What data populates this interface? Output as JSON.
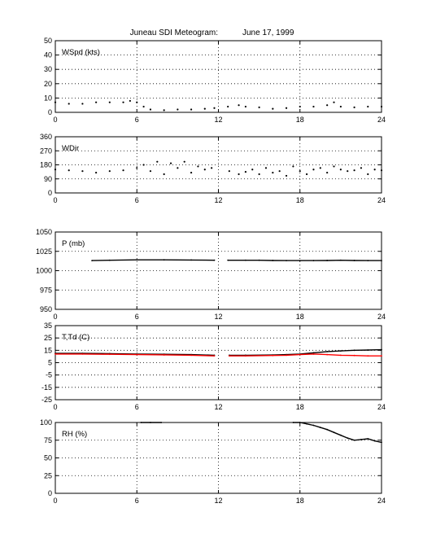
{
  "figure": {
    "title": "Juneau SDI Meteogram:",
    "date": "June 17, 1999"
  },
  "chart_data": [
    {
      "type": "line",
      "label": "WSpd (kts)",
      "xlim": [
        0,
        24
      ],
      "xticks": [
        0,
        6,
        12,
        18,
        24
      ],
      "ylim": [
        0,
        50
      ],
      "yticks": [
        0,
        10,
        20,
        30,
        40,
        50
      ],
      "grid": true,
      "series": [
        {
          "color": "#000000",
          "style": "dots",
          "x": [
            0,
            1,
            2,
            3,
            4,
            5,
            5.5,
            6,
            6.5,
            7,
            8,
            9,
            10,
            11,
            11.7,
            null,
            12.7,
            13.5,
            14,
            15,
            16,
            17,
            18,
            19,
            20,
            20.5,
            21,
            22,
            23,
            24
          ],
          "y": [
            7,
            6,
            6,
            7,
            7,
            7,
            8,
            7,
            4,
            2,
            1.5,
            2,
            2,
            2.5,
            3,
            null,
            4,
            5,
            4,
            3.5,
            2.5,
            3,
            4,
            4,
            5,
            7,
            4,
            3.5,
            4,
            4
          ]
        }
      ]
    },
    {
      "type": "scatter",
      "label": "WDir",
      "xlim": [
        0,
        24
      ],
      "xticks": [
        0,
        6,
        12,
        18,
        24
      ],
      "ylim": [
        0,
        360
      ],
      "yticks": [
        0,
        90,
        180,
        270,
        360
      ],
      "grid": true,
      "series": [
        {
          "color": "#000000",
          "style": "dots",
          "x": [
            0,
            1,
            2,
            3,
            4,
            5,
            6,
            6.5,
            7,
            7.5,
            8,
            8.5,
            9,
            9.5,
            10,
            10.5,
            11,
            11.5,
            12.8,
            13.5,
            14,
            14.5,
            15,
            15.5,
            16,
            16.5,
            17,
            17.5,
            18,
            18.5,
            19,
            19.5,
            20,
            20.5,
            21,
            21.5,
            22,
            22.5,
            23,
            23.5,
            24
          ],
          "y": [
            150,
            145,
            140,
            130,
            140,
            145,
            160,
            180,
            140,
            200,
            120,
            190,
            160,
            200,
            130,
            170,
            150,
            160,
            140,
            120,
            135,
            150,
            120,
            160,
            130,
            140,
            110,
            170,
            140,
            120,
            150,
            160,
            130,
            170,
            150,
            140,
            145,
            160,
            120,
            150,
            145
          ]
        }
      ]
    },
    {
      "type": "line",
      "label": "P (mb)",
      "xlim": [
        0,
        24
      ],
      "xticks": [
        0,
        6,
        12,
        18,
        24
      ],
      "ylim": [
        950,
        1050
      ],
      "yticks": [
        950,
        975,
        1000,
        1025,
        1050
      ],
      "grid": true,
      "series": [
        {
          "color": "#000000",
          "style": "line",
          "x": [
            2.7,
            4,
            6,
            8,
            10,
            11.7,
            null,
            12.7,
            14,
            15,
            16,
            17,
            18,
            19,
            20,
            21,
            22,
            23,
            24
          ],
          "y": [
            1013,
            1013.5,
            1014,
            1014,
            1013.8,
            1013.5,
            null,
            1013.5,
            1013.5,
            1013.5,
            1013.2,
            1013,
            1013,
            1013,
            1013.2,
            1013.5,
            1013.2,
            1013,
            1013
          ]
        }
      ]
    },
    {
      "type": "line",
      "label": "T,Td (C)",
      "xlim": [
        0,
        24
      ],
      "xticks": [
        0,
        6,
        12,
        18,
        24
      ],
      "ylim": [
        -25,
        35
      ],
      "yticks": [
        -25,
        -15,
        -5,
        5,
        15,
        25,
        35
      ],
      "grid": true,
      "series": [
        {
          "color": "#000000",
          "style": "line",
          "x": [
            0,
            2,
            4,
            6,
            8,
            10,
            11.7,
            null,
            12.8,
            14,
            16,
            17,
            18,
            19,
            20,
            21,
            22,
            23,
            24
          ],
          "y": [
            12.5,
            12.5,
            12.3,
            12,
            11.8,
            11.5,
            11,
            null,
            11,
            11,
            11.2,
            11.5,
            12,
            13,
            14,
            14.5,
            15,
            15.2,
            15.5
          ]
        },
        {
          "color": "#ff0000",
          "style": "line",
          "x": [
            0,
            2,
            4,
            6,
            8,
            10,
            11.7,
            null,
            12.8,
            14,
            16,
            17,
            18,
            19,
            20,
            21,
            22,
            23,
            24
          ],
          "y": [
            12,
            12,
            11.8,
            11.5,
            11.3,
            11,
            10.5,
            null,
            10.5,
            10.5,
            10.8,
            11,
            11.5,
            12,
            11.5,
            11,
            10.8,
            10.5,
            10.5
          ]
        }
      ]
    },
    {
      "type": "line",
      "label": "RH (%)",
      "xlim": [
        0,
        24
      ],
      "xticks": [
        0,
        6,
        12,
        18,
        24
      ],
      "ylim": [
        0,
        100
      ],
      "yticks": [
        0,
        25,
        50,
        75,
        100
      ],
      "grid": true,
      "series": [
        {
          "color": "#000000",
          "style": "line",
          "x": [
            6.3,
            7,
            7.8,
            null,
            17.5,
            18,
            18.5,
            19,
            19.5,
            20,
            20.5,
            21,
            21.5,
            22,
            22.5,
            23,
            23.5,
            24
          ],
          "y": [
            100,
            100,
            100,
            null,
            100,
            100,
            98,
            96,
            93,
            90,
            86,
            82,
            78,
            75,
            76,
            77,
            74,
            72
          ]
        }
      ]
    }
  ]
}
